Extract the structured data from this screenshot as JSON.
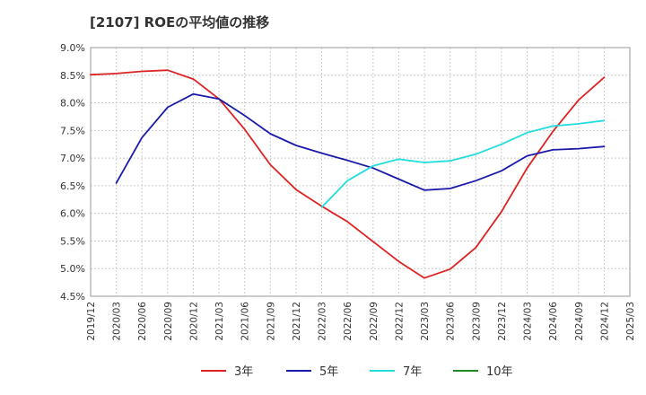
{
  "chart_data": {
    "type": "line",
    "title": "[2107]  ROEの平均値の推移",
    "xlabel": "",
    "ylabel": "",
    "ylim": [
      4.5,
      9.0
    ],
    "y_ticks": [
      "4.5%",
      "5.0%",
      "5.5%",
      "6.0%",
      "6.5%",
      "7.0%",
      "7.5%",
      "8.0%",
      "8.5%",
      "9.0%"
    ],
    "x_ticks": [
      "2019/12",
      "2020/03",
      "2020/06",
      "2020/09",
      "2020/12",
      "2021/03",
      "2021/06",
      "2021/09",
      "2021/12",
      "2022/03",
      "2022/06",
      "2022/09",
      "2022/12",
      "2023/03",
      "2023/06",
      "2023/09",
      "2023/12",
      "2024/03",
      "2024/06",
      "2024/09",
      "2024/12",
      "2025/03"
    ],
    "grid": true,
    "legend_position": "bottom",
    "series": [
      {
        "name": "3年",
        "color": "#dd2222",
        "points": [
          [
            "2019/12",
            8.51
          ],
          [
            "2020/03",
            8.53
          ],
          [
            "2020/06",
            8.57
          ],
          [
            "2020/09",
            8.59
          ],
          [
            "2020/12",
            8.43
          ],
          [
            "2021/03",
            8.07
          ],
          [
            "2021/06",
            7.52
          ],
          [
            "2021/09",
            6.88
          ],
          [
            "2021/12",
            6.43
          ],
          [
            "2022/03",
            6.13
          ],
          [
            "2022/06",
            5.85
          ],
          [
            "2022/09",
            5.49
          ],
          [
            "2022/12",
            5.13
          ],
          [
            "2023/03",
            4.83
          ],
          [
            "2023/06",
            4.99
          ],
          [
            "2023/09",
            5.38
          ],
          [
            "2023/12",
            6.03
          ],
          [
            "2024/03",
            6.82
          ],
          [
            "2024/06",
            7.48
          ],
          [
            "2024/09",
            8.05
          ],
          [
            "2024/12",
            8.46
          ]
        ]
      },
      {
        "name": "5年",
        "color": "#1a1aaa",
        "points": [
          [
            "2020/03",
            6.55
          ],
          [
            "2020/06",
            7.37
          ],
          [
            "2020/09",
            7.92
          ],
          [
            "2020/12",
            8.16
          ],
          [
            "2021/03",
            8.07
          ],
          [
            "2021/06",
            7.77
          ],
          [
            "2021/09",
            7.44
          ],
          [
            "2021/12",
            7.23
          ],
          [
            "2022/03",
            7.09
          ],
          [
            "2022/06",
            6.96
          ],
          [
            "2022/09",
            6.82
          ],
          [
            "2022/12",
            6.62
          ],
          [
            "2023/03",
            6.42
          ],
          [
            "2023/06",
            6.45
          ],
          [
            "2023/09",
            6.59
          ],
          [
            "2023/12",
            6.77
          ],
          [
            "2024/03",
            7.04
          ],
          [
            "2024/06",
            7.15
          ],
          [
            "2024/09",
            7.17
          ],
          [
            "2024/12",
            7.21
          ]
        ]
      },
      {
        "name": "7年",
        "color": "#22dddd",
        "points": [
          [
            "2022/03",
            6.11
          ],
          [
            "2022/06",
            6.59
          ],
          [
            "2022/09",
            6.86
          ],
          [
            "2022/12",
            6.98
          ],
          [
            "2023/03",
            6.92
          ],
          [
            "2023/06",
            6.95
          ],
          [
            "2023/09",
            7.07
          ],
          [
            "2023/12",
            7.25
          ],
          [
            "2024/03",
            7.46
          ],
          [
            "2024/06",
            7.58
          ],
          [
            "2024/09",
            7.62
          ],
          [
            "2024/12",
            7.68
          ]
        ]
      },
      {
        "name": "10年",
        "color": "#228822",
        "points": []
      }
    ]
  }
}
